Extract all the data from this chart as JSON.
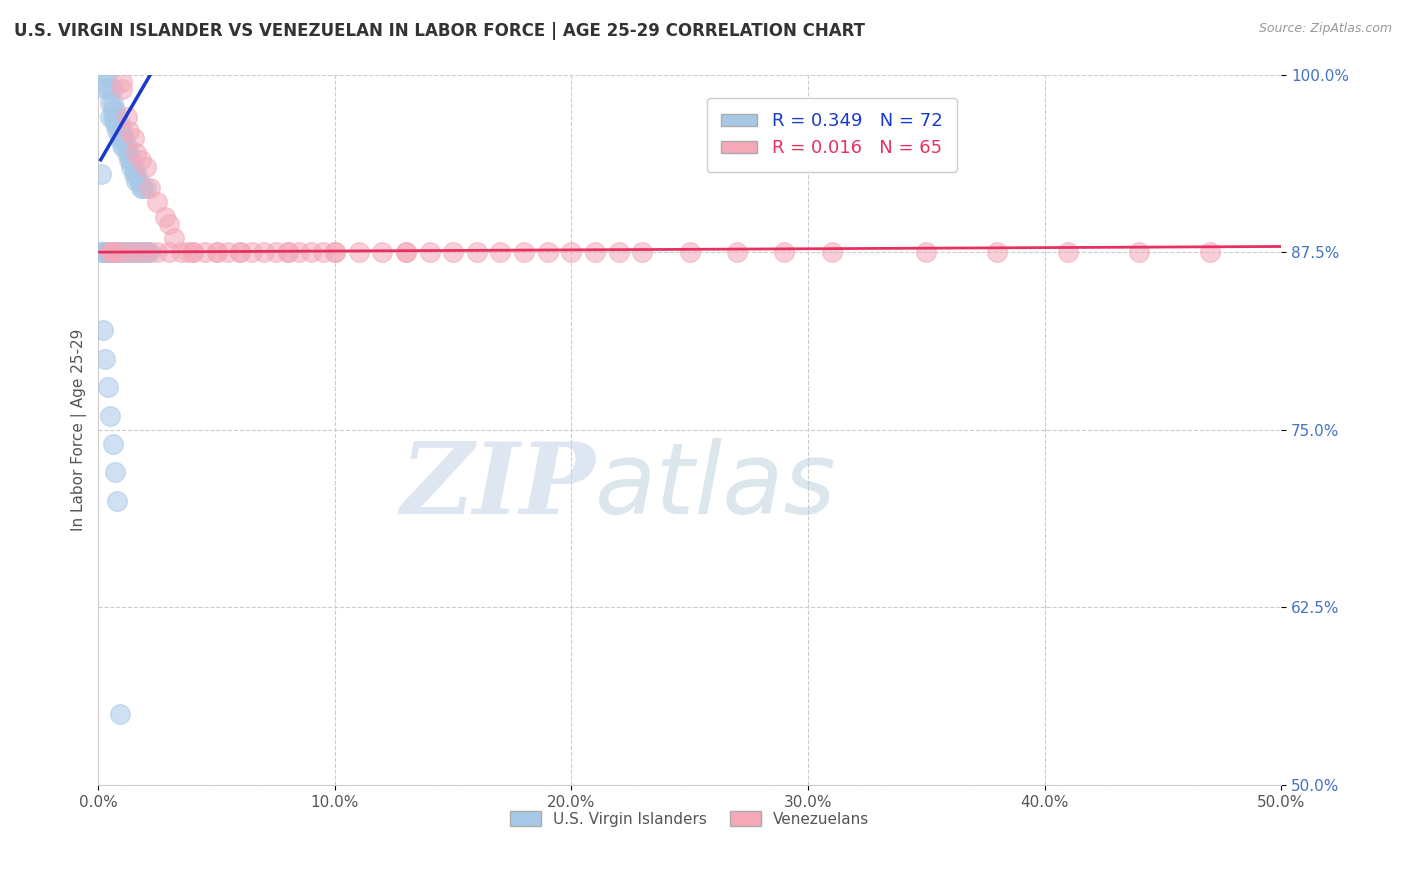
{
  "title": "U.S. VIRGIN ISLANDER VS VENEZUELAN IN LABOR FORCE | AGE 25-29 CORRELATION CHART",
  "source": "Source: ZipAtlas.com",
  "ylabel": "In Labor Force | Age 25-29",
  "xlim": [
    0.0,
    0.5
  ],
  "ylim": [
    0.5,
    1.0
  ],
  "xticks": [
    0.0,
    0.1,
    0.2,
    0.3,
    0.4,
    0.5
  ],
  "xticklabels": [
    "0.0%",
    "10.0%",
    "20.0%",
    "30.0%",
    "40.0%",
    "50.0%"
  ],
  "yticks": [
    0.5,
    0.625,
    0.75,
    0.875,
    1.0
  ],
  "yticklabels": [
    "50.0%",
    "62.5%",
    "75.0%",
    "87.5%",
    "100.0%"
  ],
  "blue_R": 0.349,
  "blue_N": 72,
  "pink_R": 0.016,
  "pink_N": 65,
  "blue_color": "#A8C8E8",
  "pink_color": "#F4A8B8",
  "blue_line_color": "#1A3ACC",
  "pink_line_color": "#E83060",
  "watermark_zip": "ZIP",
  "watermark_atlas": "atlas",
  "blue_x": [
    0.002,
    0.003,
    0.003,
    0.004,
    0.004,
    0.005,
    0.005,
    0.005,
    0.006,
    0.006,
    0.006,
    0.006,
    0.007,
    0.007,
    0.007,
    0.008,
    0.008,
    0.008,
    0.009,
    0.009,
    0.009,
    0.01,
    0.01,
    0.01,
    0.011,
    0.011,
    0.012,
    0.012,
    0.013,
    0.013,
    0.014,
    0.014,
    0.015,
    0.015,
    0.016,
    0.016,
    0.017,
    0.018,
    0.019,
    0.02,
    0.001,
    0.001,
    0.002,
    0.002,
    0.003,
    0.004,
    0.005,
    0.006,
    0.007,
    0.008,
    0.009,
    0.01,
    0.011,
    0.012,
    0.013,
    0.014,
    0.015,
    0.016,
    0.017,
    0.018,
    0.019,
    0.02,
    0.021,
    0.022,
    0.002,
    0.003,
    0.004,
    0.005,
    0.006,
    0.007,
    0.008,
    0.009
  ],
  "blue_y": [
    1.0,
    1.0,
    0.99,
    1.0,
    0.99,
    0.99,
    0.98,
    0.97,
    0.99,
    0.98,
    0.975,
    0.97,
    0.975,
    0.97,
    0.965,
    0.97,
    0.965,
    0.96,
    0.965,
    0.96,
    0.955,
    0.96,
    0.955,
    0.95,
    0.955,
    0.95,
    0.95,
    0.945,
    0.945,
    0.94,
    0.94,
    0.935,
    0.935,
    0.93,
    0.93,
    0.925,
    0.925,
    0.92,
    0.92,
    0.92,
    0.93,
    0.875,
    0.875,
    0.875,
    0.875,
    0.875,
    0.875,
    0.875,
    0.875,
    0.875,
    0.875,
    0.875,
    0.875,
    0.875,
    0.875,
    0.875,
    0.875,
    0.875,
    0.875,
    0.875,
    0.875,
    0.875,
    0.875,
    0.875,
    0.82,
    0.8,
    0.78,
    0.76,
    0.74,
    0.72,
    0.7,
    0.55
  ],
  "pink_x": [
    0.005,
    0.008,
    0.01,
    0.01,
    0.012,
    0.013,
    0.015,
    0.016,
    0.018,
    0.02,
    0.022,
    0.025,
    0.028,
    0.03,
    0.032,
    0.035,
    0.038,
    0.04,
    0.045,
    0.05,
    0.055,
    0.06,
    0.065,
    0.07,
    0.075,
    0.08,
    0.085,
    0.09,
    0.095,
    0.1,
    0.11,
    0.12,
    0.13,
    0.14,
    0.15,
    0.16,
    0.17,
    0.18,
    0.19,
    0.2,
    0.21,
    0.22,
    0.23,
    0.25,
    0.27,
    0.29,
    0.31,
    0.35,
    0.38,
    0.41,
    0.44,
    0.47,
    0.005,
    0.008,
    0.012,
    0.016,
    0.02,
    0.025,
    0.03,
    0.04,
    0.05,
    0.06,
    0.08,
    0.1,
    0.13
  ],
  "pink_y": [
    0.875,
    0.875,
    0.995,
    0.99,
    0.97,
    0.96,
    0.955,
    0.945,
    0.94,
    0.935,
    0.92,
    0.91,
    0.9,
    0.895,
    0.885,
    0.875,
    0.875,
    0.875,
    0.875,
    0.875,
    0.875,
    0.875,
    0.875,
    0.875,
    0.875,
    0.875,
    0.875,
    0.875,
    0.875,
    0.875,
    0.875,
    0.875,
    0.875,
    0.875,
    0.875,
    0.875,
    0.875,
    0.875,
    0.875,
    0.875,
    0.875,
    0.875,
    0.875,
    0.875,
    0.875,
    0.875,
    0.875,
    0.875,
    0.875,
    0.875,
    0.875,
    0.875,
    0.875,
    0.875,
    0.875,
    0.875,
    0.875,
    0.875,
    0.875,
    0.875,
    0.875,
    0.875,
    0.875,
    0.875,
    0.875
  ],
  "blue_trend_x": [
    0.001,
    0.022
  ],
  "blue_trend_y": [
    0.94,
    1.0
  ],
  "pink_trend_x": [
    0.0,
    0.5
  ],
  "pink_trend_y": [
    0.875,
    0.879
  ]
}
